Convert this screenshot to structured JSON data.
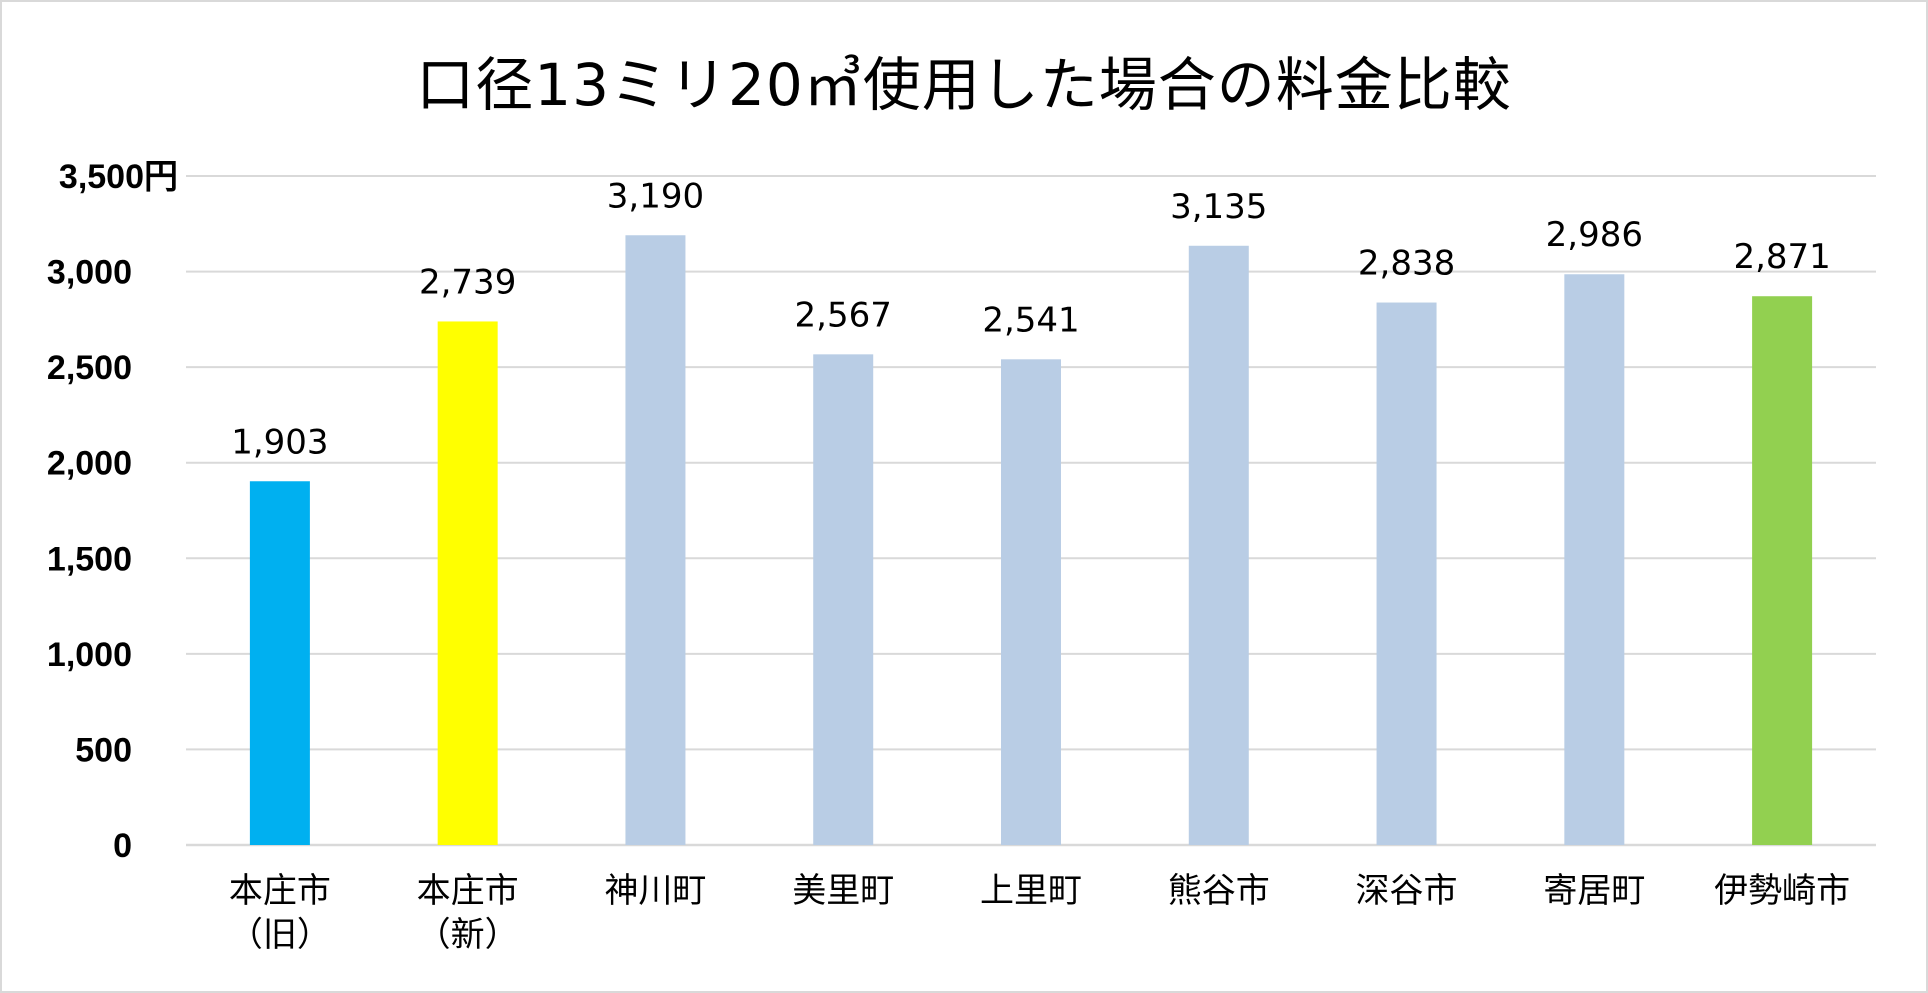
{
  "chart_data": {
    "type": "bar",
    "title": "口径13ミリ20㎥使用した場合の料金比較",
    "categories": [
      [
        "本庄市",
        "（旧）"
      ],
      [
        "本庄市",
        "（新）"
      ],
      [
        "神川町"
      ],
      [
        "美里町"
      ],
      [
        "上里町"
      ],
      [
        "熊谷市"
      ],
      [
        "深谷市"
      ],
      [
        "寄居町"
      ],
      [
        "伊勢崎市"
      ]
    ],
    "values": [
      1903,
      2739,
      3190,
      2567,
      2541,
      3135,
      2838,
      2986,
      2871
    ],
    "value_labels": [
      "1,903",
      "2,739",
      "3,190",
      "2,567",
      "2,541",
      "3,135",
      "2,838",
      "2,986",
      "2,871"
    ],
    "bar_colors": [
      "#00b0f0",
      "#ffff00",
      "#b9cde5",
      "#b9cde5",
      "#b9cde5",
      "#b9cde5",
      "#b9cde5",
      "#b9cde5",
      "#92d050"
    ],
    "ylim": [
      0,
      3500
    ],
    "yticks": [
      0,
      500,
      1000,
      1500,
      2000,
      2500,
      3000,
      3500
    ],
    "ytick_labels": [
      "0",
      "500",
      "1,000",
      "1,500",
      "2,000",
      "2,500",
      "3,000",
      "3,500円"
    ],
    "grid": true,
    "gridline_color": "#d9d9d9",
    "xlabel": "",
    "ylabel": ""
  }
}
